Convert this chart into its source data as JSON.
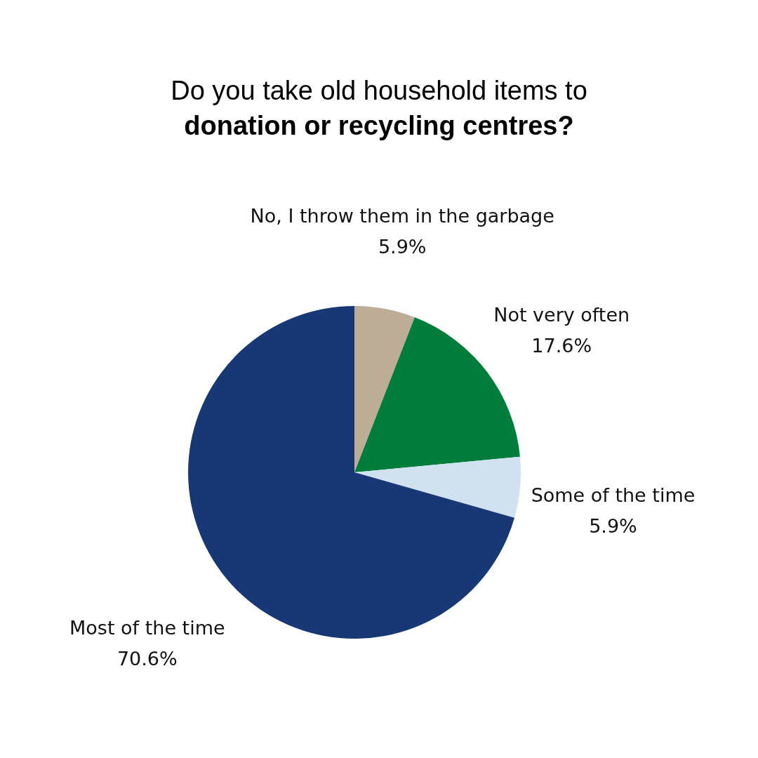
{
  "chart_data": {
    "type": "pie",
    "title": "Do you take old household items to donation or recycling centres?",
    "categories": [
      "No, I throw them in the garbage",
      "Not very often",
      "Some of the time",
      "Most of the time"
    ],
    "values": [
      5.9,
      17.6,
      5.9,
      70.6
    ],
    "value_labels": [
      "5.9%",
      "17.6%",
      "5.9%",
      "70.6%"
    ],
    "colors": [
      "#bdad97",
      "#007d3a",
      "#d0e1f0",
      "#173775"
    ]
  }
}
